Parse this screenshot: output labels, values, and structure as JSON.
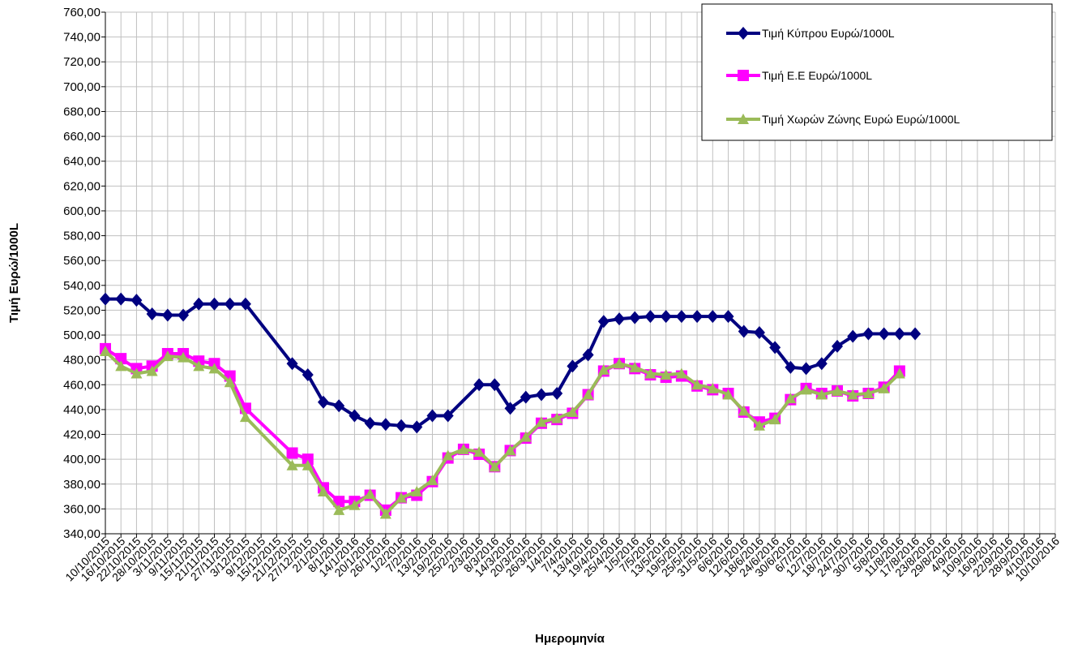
{
  "chart_data": {
    "type": "line",
    "xlabel": "Ημερομηνία",
    "ylabel": "Τιμή Ευρώ/1000L",
    "ylim": [
      340,
      760
    ],
    "ytick_step": 20,
    "grid": true,
    "legend_position": "top-right",
    "x": [
      "10/10/2015",
      "16/10/2015",
      "22/10/2015",
      "28/10/2015",
      "3/11/2015",
      "9/11/2015",
      "15/11/2015",
      "21/11/2015",
      "27/11/2015",
      "3/12/2015",
      "9/12/2015",
      "15/12/2015",
      "21/12/2015",
      "27/12/2015",
      "2/1/2016",
      "8/1/2016",
      "14/1/2016",
      "20/1/2016",
      "26/1/2016",
      "1/2/2016",
      "7/2/2016",
      "13/2/2016",
      "19/2/2016",
      "25/2/2016",
      "2/3/2016",
      "8/3/2016",
      "14/3/2016",
      "20/3/2016",
      "26/3/2016",
      "1/4/2016",
      "7/4/2016",
      "13/4/2016",
      "19/4/2016",
      "25/4/2016",
      "1/5/2016",
      "7/5/2016",
      "13/5/2016",
      "19/5/2016",
      "25/5/2016",
      "31/5/2016",
      "6/6/2016",
      "12/6/2016",
      "18/6/2016",
      "24/6/2016",
      "30/6/2016",
      "6/7/2016",
      "12/7/2016",
      "18/7/2016",
      "24/7/2016",
      "30/7/2016",
      "5/8/2016",
      "11/8/2016",
      "17/8/2016",
      "23/8/2016",
      "29/8/2016",
      "4/9/2016",
      "10/9/2016",
      "16/9/2016",
      "22/9/2016",
      "28/9/2016",
      "4/10/2016",
      "10/10/2016"
    ],
    "series": [
      {
        "name": "Τιμή Κύπρου Ευρώ/1000L",
        "color": "#000080",
        "marker": "diamond",
        "values": [
          [
            0,
            529
          ],
          [
            1,
            529
          ],
          [
            2,
            528
          ],
          [
            3,
            517
          ],
          [
            4,
            516
          ],
          [
            5,
            516
          ],
          [
            6,
            525
          ],
          [
            7,
            525
          ],
          [
            8,
            525
          ],
          [
            9,
            525
          ],
          [
            12,
            477
          ],
          [
            13,
            468
          ],
          [
            14,
            446
          ],
          [
            15,
            443
          ],
          [
            16,
            435
          ],
          [
            17,
            429
          ],
          [
            18,
            428
          ],
          [
            19,
            427
          ],
          [
            20,
            426
          ],
          [
            21,
            435
          ],
          [
            22,
            435
          ],
          [
            24,
            460
          ],
          [
            25,
            460
          ],
          [
            26,
            441
          ],
          [
            27,
            450
          ],
          [
            28,
            452
          ],
          [
            29,
            453
          ],
          [
            30,
            475
          ],
          [
            31,
            484
          ],
          [
            32,
            511
          ],
          [
            33,
            513
          ],
          [
            34,
            514
          ],
          [
            35,
            515
          ],
          [
            36,
            515
          ],
          [
            37,
            515
          ],
          [
            38,
            515
          ],
          [
            39,
            515
          ],
          [
            40,
            515
          ],
          [
            41,
            503
          ],
          [
            42,
            502
          ],
          [
            43,
            490
          ],
          [
            44,
            474
          ],
          [
            45,
            473
          ],
          [
            46,
            477
          ],
          [
            47,
            491
          ],
          [
            48,
            499
          ],
          [
            49,
            501
          ],
          [
            50,
            501
          ],
          [
            51,
            501
          ],
          [
            52,
            501
          ]
        ]
      },
      {
        "name": "Τιμή Ε.Ε Ευρώ/1000L",
        "color": "#ff00ff",
        "marker": "square",
        "values": [
          [
            0,
            489
          ],
          [
            1,
            481
          ],
          [
            2,
            473
          ],
          [
            3,
            475
          ],
          [
            4,
            485
          ],
          [
            5,
            485
          ],
          [
            6,
            479
          ],
          [
            7,
            477
          ],
          [
            8,
            467
          ],
          [
            9,
            441
          ],
          [
            12,
            405
          ],
          [
            13,
            400
          ],
          [
            14,
            377
          ],
          [
            15,
            366
          ],
          [
            16,
            366
          ],
          [
            17,
            371
          ],
          [
            18,
            359
          ],
          [
            19,
            369
          ],
          [
            20,
            371
          ],
          [
            21,
            382
          ],
          [
            22,
            401
          ],
          [
            23,
            408
          ],
          [
            24,
            404
          ],
          [
            25,
            394
          ],
          [
            26,
            407
          ],
          [
            27,
            417
          ],
          [
            28,
            429
          ],
          [
            29,
            432
          ],
          [
            30,
            437
          ],
          [
            31,
            452
          ],
          [
            32,
            471
          ],
          [
            33,
            477
          ],
          [
            34,
            473
          ],
          [
            35,
            468
          ],
          [
            36,
            466
          ],
          [
            37,
            467
          ],
          [
            38,
            459
          ],
          [
            39,
            456
          ],
          [
            40,
            453
          ],
          [
            41,
            438
          ],
          [
            42,
            430
          ],
          [
            43,
            433
          ],
          [
            44,
            448
          ],
          [
            45,
            457
          ],
          [
            46,
            453
          ],
          [
            47,
            455
          ],
          [
            48,
            451
          ],
          [
            49,
            453
          ],
          [
            50,
            458
          ],
          [
            51,
            471
          ]
        ]
      },
      {
        "name": "Τιμή Χωρών  Ζώνης Ευρώ Ευρώ/1000L",
        "color": "#9bbb59",
        "marker": "triangle",
        "values": [
          [
            0,
            487
          ],
          [
            1,
            475
          ],
          [
            2,
            469
          ],
          [
            3,
            471
          ],
          [
            4,
            483
          ],
          [
            5,
            482
          ],
          [
            6,
            475
          ],
          [
            7,
            473
          ],
          [
            8,
            462
          ],
          [
            9,
            434
          ],
          [
            12,
            395
          ],
          [
            13,
            395
          ],
          [
            14,
            374
          ],
          [
            15,
            359
          ],
          [
            16,
            363
          ],
          [
            17,
            372
          ],
          [
            18,
            356
          ],
          [
            19,
            369
          ],
          [
            20,
            374
          ],
          [
            21,
            383
          ],
          [
            22,
            403
          ],
          [
            23,
            408
          ],
          [
            24,
            406
          ],
          [
            25,
            394
          ],
          [
            26,
            407
          ],
          [
            27,
            418
          ],
          [
            28,
            430
          ],
          [
            29,
            433
          ],
          [
            30,
            438
          ],
          [
            31,
            452
          ],
          [
            32,
            472
          ],
          [
            33,
            477
          ],
          [
            34,
            474
          ],
          [
            35,
            469
          ],
          [
            36,
            468
          ],
          [
            37,
            469
          ],
          [
            38,
            460
          ],
          [
            39,
            457
          ],
          [
            40,
            452
          ],
          [
            41,
            439
          ],
          [
            42,
            427
          ],
          [
            43,
            432
          ],
          [
            44,
            449
          ],
          [
            45,
            456
          ],
          [
            46,
            452
          ],
          [
            47,
            455
          ],
          [
            48,
            452
          ],
          [
            49,
            453
          ],
          [
            50,
            457
          ],
          [
            51,
            469
          ]
        ]
      }
    ]
  }
}
